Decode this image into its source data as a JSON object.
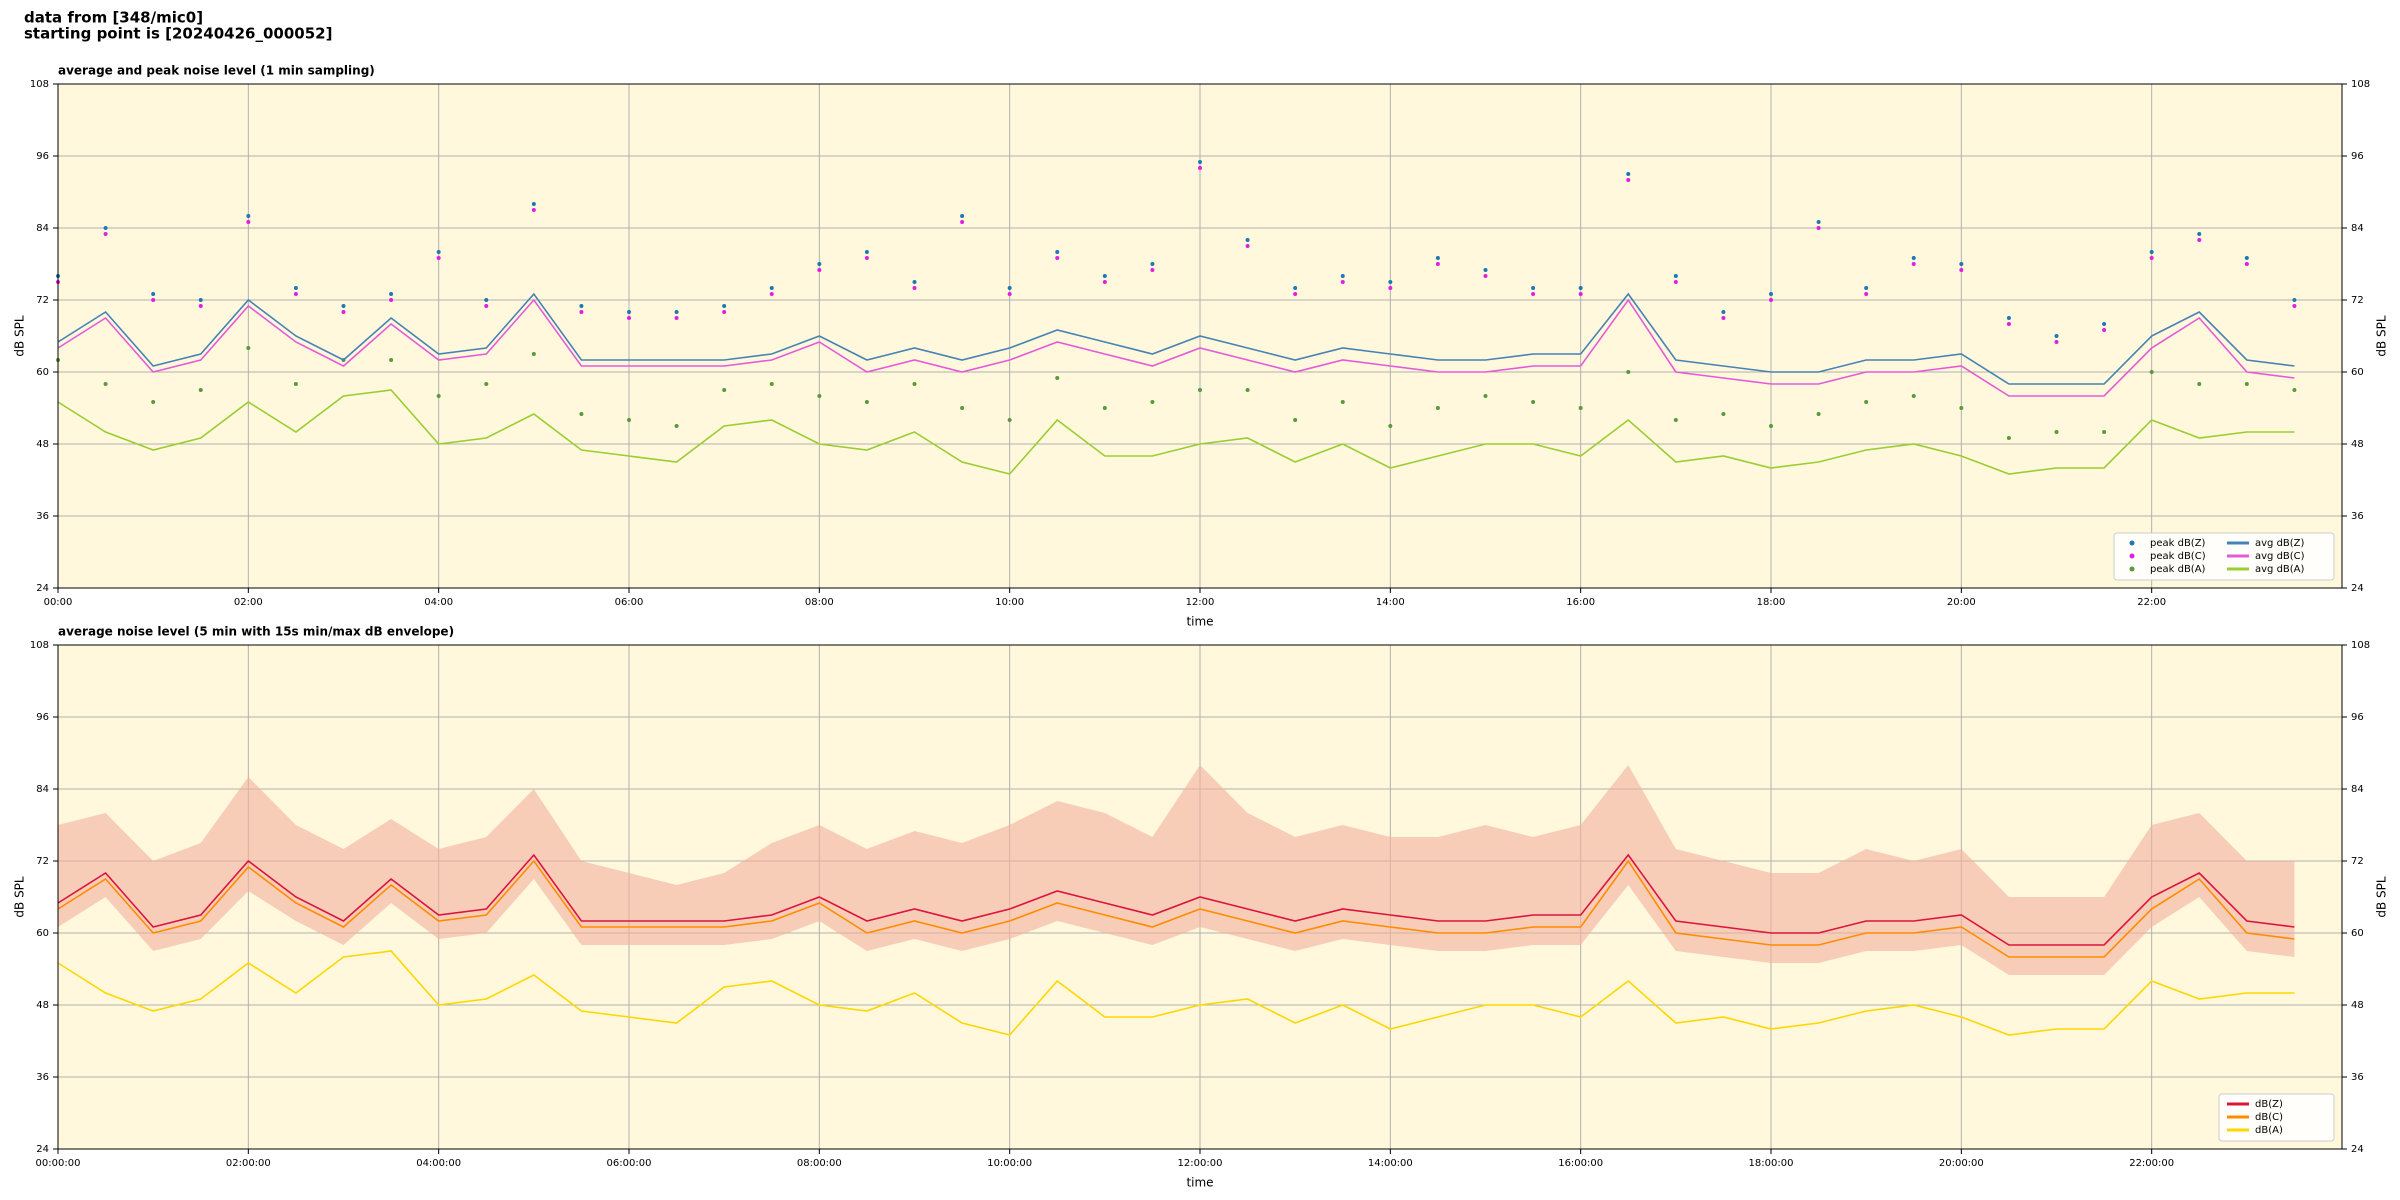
{
  "header": {
    "lines": [
      "data from [348/mic0]",
      "starting point is [20240426_000052]"
    ]
  },
  "chart_data": [
    {
      "type": "line",
      "title": "average and peak noise level (1 min sampling)",
      "xlabel": "time",
      "ylabel": "dB SPL",
      "y2label": "dB SPL",
      "background": "#fff8dc",
      "grid": true,
      "legend": "lower right",
      "x": [
        0,
        0.5,
        1,
        1.5,
        2,
        2.5,
        3,
        3.5,
        4,
        4.5,
        5,
        5.5,
        6,
        6.5,
        7,
        7.5,
        8,
        8.5,
        9,
        9.5,
        10,
        10.5,
        11,
        11.5,
        12,
        12.5,
        13,
        13.5,
        14,
        14.5,
        15,
        15.5,
        16,
        16.5,
        17,
        17.5,
        18,
        18.5,
        19,
        19.5,
        20,
        20.5,
        21,
        21.5,
        22,
        22.5,
        23,
        23.5
      ],
      "xlim": [
        0,
        24
      ],
      "xticks": [
        {
          "value": 0,
          "label": "00:00"
        },
        {
          "value": 2,
          "label": "02:00"
        },
        {
          "value": 4,
          "label": "04:00"
        },
        {
          "value": 6,
          "label": "06:00"
        },
        {
          "value": 8,
          "label": "08:00"
        },
        {
          "value": 10,
          "label": "10:00"
        },
        {
          "value": 12,
          "label": "12:00"
        },
        {
          "value": 14,
          "label": "14:00"
        },
        {
          "value": 16,
          "label": "16:00"
        },
        {
          "value": 18,
          "label": "18:00"
        },
        {
          "value": 20,
          "label": "20:00"
        },
        {
          "value": 22,
          "label": "22:00"
        }
      ],
      "ylim": [
        24,
        108
      ],
      "yticks": [
        24,
        36,
        48,
        60,
        72,
        84,
        96,
        108
      ],
      "y2lim": [
        24,
        108
      ],
      "y2ticks": [
        24,
        36,
        48,
        60,
        72,
        84,
        96,
        108
      ],
      "series": [
        {
          "name": "peak dB(Z)",
          "style": "dots",
          "color": "#1f77b4",
          "values": [
            76,
            84,
            73,
            72,
            86,
            74,
            71,
            73,
            80,
            72,
            88,
            71,
            70,
            70,
            71,
            74,
            78,
            80,
            75,
            86,
            74,
            80,
            76,
            78,
            95,
            82,
            74,
            76,
            75,
            79,
            77,
            74,
            74,
            93,
            76,
            70,
            73,
            85,
            74,
            79,
            78,
            69,
            66,
            68,
            80,
            83,
            79,
            72
          ]
        },
        {
          "name": "peak dB(C)",
          "style": "dots",
          "color": "#e21ee2",
          "values": [
            75,
            83,
            72,
            71,
            85,
            73,
            70,
            72,
            79,
            71,
            87,
            70,
            69,
            69,
            70,
            73,
            77,
            79,
            74,
            85,
            73,
            79,
            75,
            77,
            94,
            81,
            73,
            75,
            74,
            78,
            76,
            73,
            73,
            92,
            75,
            69,
            72,
            84,
            73,
            78,
            77,
            68,
            65,
            67,
            79,
            82,
            78,
            71
          ]
        },
        {
          "name": "peak dB(A)",
          "style": "dots",
          "color": "#5a9a3a",
          "values": [
            62,
            58,
            55,
            57,
            64,
            58,
            62,
            62,
            56,
            58,
            63,
            53,
            52,
            51,
            57,
            58,
            56,
            55,
            58,
            54,
            52,
            59,
            54,
            55,
            57,
            57,
            52,
            55,
            51,
            54,
            56,
            55,
            54,
            60,
            52,
            53,
            51,
            53,
            55,
            56,
            54,
            49,
            50,
            50,
            60,
            58,
            58,
            57
          ]
        },
        {
          "name": "avg dB(Z)",
          "style": "line",
          "color": "#4682b4",
          "values": [
            65,
            70,
            61,
            63,
            72,
            66,
            62,
            69,
            63,
            64,
            73,
            62,
            62,
            62,
            62,
            63,
            66,
            62,
            64,
            62,
            64,
            67,
            65,
            63,
            66,
            64,
            62,
            64,
            63,
            62,
            62,
            63,
            63,
            73,
            62,
            61,
            60,
            60,
            62,
            62,
            63,
            58,
            58,
            58,
            66,
            70,
            62,
            61
          ]
        },
        {
          "name": "avg dB(C)",
          "style": "line",
          "color": "#e55ad8",
          "values": [
            64,
            69,
            60,
            62,
            71,
            65,
            61,
            68,
            62,
            63,
            72,
            61,
            61,
            61,
            61,
            62,
            65,
            60,
            62,
            60,
            62,
            65,
            63,
            61,
            64,
            62,
            60,
            62,
            61,
            60,
            60,
            61,
            61,
            72,
            60,
            59,
            58,
            58,
            60,
            60,
            61,
            56,
            56,
            56,
            64,
            69,
            60,
            59
          ]
        },
        {
          "name": "avg dB(A)",
          "style": "line",
          "color": "#9acd32",
          "values": [
            55,
            50,
            47,
            49,
            55,
            50,
            56,
            57,
            48,
            49,
            53,
            47,
            46,
            45,
            51,
            52,
            48,
            47,
            50,
            45,
            43,
            52,
            46,
            46,
            48,
            49,
            45,
            48,
            44,
            46,
            48,
            48,
            46,
            52,
            45,
            46,
            44,
            45,
            47,
            48,
            46,
            43,
            44,
            44,
            52,
            49,
            50,
            50
          ]
        }
      ]
    },
    {
      "type": "line",
      "title": "average noise level (5 min with 15s min/max dB envelope)",
      "xlabel": "time",
      "ylabel": "dB SPL",
      "y2label": "dB SPL",
      "background": "#fff8dc",
      "grid": true,
      "legend": "lower right",
      "x": [
        0,
        0.5,
        1,
        1.5,
        2,
        2.5,
        3,
        3.5,
        4,
        4.5,
        5,
        5.5,
        6,
        6.5,
        7,
        7.5,
        8,
        8.5,
        9,
        9.5,
        10,
        10.5,
        11,
        11.5,
        12,
        12.5,
        13,
        13.5,
        14,
        14.5,
        15,
        15.5,
        16,
        16.5,
        17,
        17.5,
        18,
        18.5,
        19,
        19.5,
        20,
        20.5,
        21,
        21.5,
        22,
        22.5,
        23,
        23.5
      ],
      "xlim": [
        0,
        24
      ],
      "xticks": [
        {
          "value": 0,
          "label": "00:00:00"
        },
        {
          "value": 2,
          "label": "02:00:00"
        },
        {
          "value": 4,
          "label": "04:00:00"
        },
        {
          "value": 6,
          "label": "06:00:00"
        },
        {
          "value": 8,
          "label": "08:00:00"
        },
        {
          "value": 10,
          "label": "10:00:00"
        },
        {
          "value": 12,
          "label": "12:00:00"
        },
        {
          "value": 14,
          "label": "14:00:00"
        },
        {
          "value": 16,
          "label": "16:00:00"
        },
        {
          "value": 18,
          "label": "18:00:00"
        },
        {
          "value": 20,
          "label": "20:00:00"
        },
        {
          "value": 22,
          "label": "22:00:00"
        }
      ],
      "ylim": [
        24,
        108
      ],
      "yticks": [
        24,
        36,
        48,
        60,
        72,
        84,
        96,
        108
      ],
      "y2lim": [
        24,
        108
      ],
      "y2ticks": [
        24,
        36,
        48,
        60,
        72,
        84,
        96,
        108
      ],
      "envelope": {
        "color": "#f4b0a0",
        "max": [
          78,
          80,
          72,
          75,
          86,
          78,
          74,
          79,
          74,
          76,
          84,
          72,
          70,
          68,
          70,
          75,
          78,
          74,
          77,
          75,
          78,
          82,
          80,
          76,
          88,
          80,
          76,
          78,
          76,
          76,
          78,
          76,
          78,
          88,
          74,
          72,
          70,
          70,
          74,
          72,
          74,
          66,
          66,
          66,
          78,
          80,
          72,
          72
        ],
        "min": [
          61,
          66,
          57,
          59,
          67,
          62,
          58,
          65,
          59,
          60,
          69,
          58,
          58,
          58,
          58,
          59,
          62,
          57,
          59,
          57,
          59,
          62,
          60,
          58,
          61,
          59,
          57,
          59,
          58,
          57,
          57,
          58,
          58,
          68,
          57,
          56,
          55,
          55,
          57,
          57,
          58,
          53,
          53,
          53,
          61,
          66,
          57,
          56
        ]
      },
      "series": [
        {
          "name": "dB(Z)",
          "style": "line",
          "color": "#dc143c",
          "values": [
            65,
            70,
            61,
            63,
            72,
            66,
            62,
            69,
            63,
            64,
            73,
            62,
            62,
            62,
            62,
            63,
            66,
            62,
            64,
            62,
            64,
            67,
            65,
            63,
            66,
            64,
            62,
            64,
            63,
            62,
            62,
            63,
            63,
            73,
            62,
            61,
            60,
            60,
            62,
            62,
            63,
            58,
            58,
            58,
            66,
            70,
            62,
            61
          ]
        },
        {
          "name": "dB(C)",
          "style": "line",
          "color": "#ff8c00",
          "values": [
            64,
            69,
            60,
            62,
            71,
            65,
            61,
            68,
            62,
            63,
            72,
            61,
            61,
            61,
            61,
            62,
            65,
            60,
            62,
            60,
            62,
            65,
            63,
            61,
            64,
            62,
            60,
            62,
            61,
            60,
            60,
            61,
            61,
            72,
            60,
            59,
            58,
            58,
            60,
            60,
            61,
            56,
            56,
            56,
            64,
            69,
            60,
            59
          ]
        },
        {
          "name": "dB(A)",
          "style": "line",
          "color": "#ffd700",
          "values": [
            55,
            50,
            47,
            49,
            55,
            50,
            56,
            57,
            48,
            49,
            53,
            47,
            46,
            45,
            51,
            52,
            48,
            47,
            50,
            45,
            43,
            52,
            46,
            46,
            48,
            49,
            45,
            48,
            44,
            46,
            48,
            48,
            46,
            52,
            45,
            46,
            44,
            45,
            47,
            48,
            46,
            43,
            44,
            44,
            52,
            49,
            50,
            50
          ]
        }
      ]
    }
  ]
}
